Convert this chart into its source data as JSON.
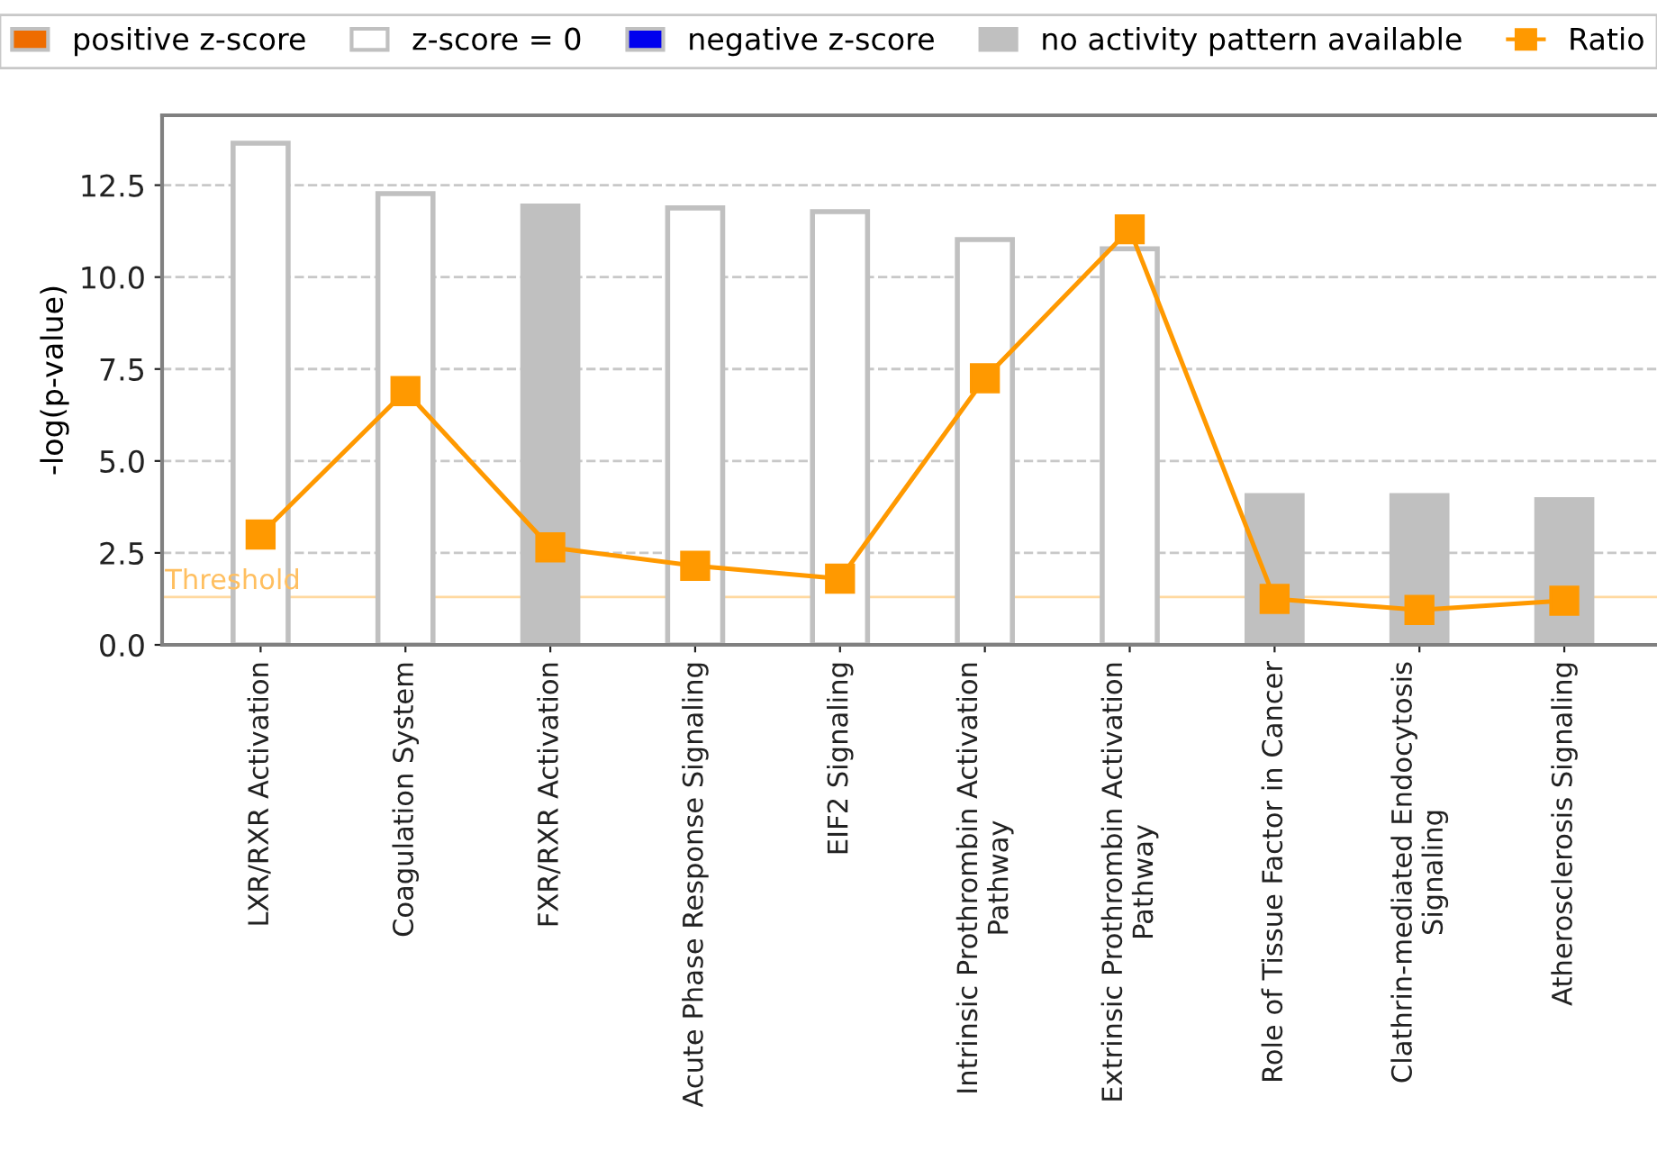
{
  "chart_data": {
    "type": "bar",
    "ylabel": "-log(p-value)",
    "categories": [
      "LXR/RXR Activation",
      "Coagulation System",
      "FXR/RXR Activation",
      "Acute Phase Response Signaling",
      "EIF2 Signaling",
      "Intrinsic Prothrombin Activation\nPathway",
      "Extrinsic Prothrombin Activation\nPathway",
      "Role of Tissue Factor in Cancer",
      "Clathrin-mediated Endocytosis\nSignaling",
      "Atherosclerosis Signaling"
    ],
    "series": [
      {
        "name": "positive z-score",
        "color": "#ee6c00",
        "values": [
          null,
          null,
          null,
          null,
          null,
          null,
          null,
          null,
          null,
          null
        ]
      },
      {
        "name": "z-score = 0",
        "color": "#ffffff",
        "values": [
          13.64,
          12.27,
          null,
          11.88,
          11.78,
          11.02,
          10.77,
          null,
          null,
          null
        ]
      },
      {
        "name": "negative z-score",
        "color": "#0000ee",
        "values": [
          null,
          null,
          null,
          null,
          null,
          null,
          null,
          null,
          null,
          null
        ]
      },
      {
        "name": "no activity pattern available",
        "color": "#c0c0c0",
        "values": [
          null,
          null,
          11.93,
          null,
          null,
          null,
          null,
          4.06,
          4.06,
          3.95
        ]
      },
      {
        "name": "Ratio",
        "type": "line",
        "color": "#ff9900",
        "marker": "square",
        "values": [
          3.0,
          6.9,
          2.65,
          2.15,
          1.8,
          7.25,
          11.3,
          1.25,
          0.95,
          1.2
        ]
      }
    ],
    "ylim": [
      0,
      14.4
    ],
    "yticks": [
      {
        "value": 0,
        "label": "0.0"
      },
      2.5,
      {
        "value": 5,
        "label": "5.0"
      },
      7.5,
      {
        "value": 10,
        "label": "10.0"
      },
      12.5
    ],
    "ref_lines": [
      {
        "axis": "y",
        "value": 1.3,
        "label": "Threshold",
        "color": "#ffd9a0"
      }
    ],
    "grid": "y",
    "legend": "top"
  }
}
